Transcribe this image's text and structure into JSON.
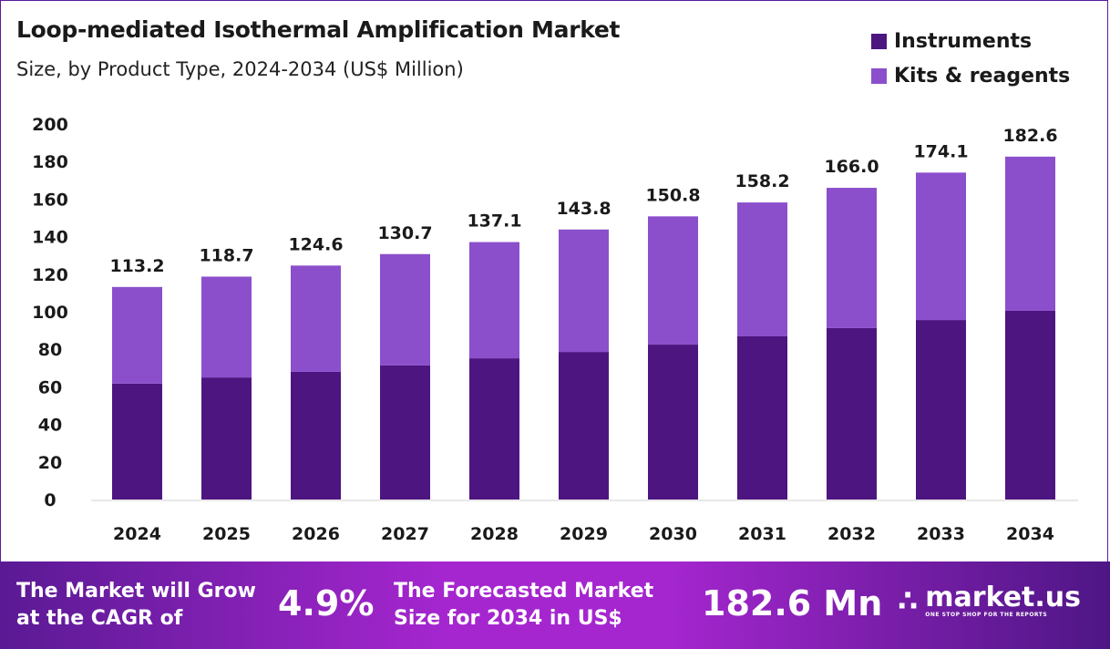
{
  "chart_data": {
    "type": "bar",
    "stacked": true,
    "title": "Loop-mediated Isothermal Amplification Market",
    "subtitle": "Size, by Product Type, 2024-2034 (US$ Million)",
    "categories": [
      "2024",
      "2025",
      "2026",
      "2027",
      "2028",
      "2029",
      "2030",
      "2031",
      "2032",
      "2033",
      "2034"
    ],
    "series": [
      {
        "name": "Instruments",
        "color": "#4d1580",
        "values": [
          61.7,
          65.0,
          68.0,
          71.4,
          75.2,
          78.6,
          82.5,
          86.9,
          91.3,
          95.6,
          100.5
        ]
      },
      {
        "name": "Kits & reagents",
        "color": "#8b4fcc",
        "values": [
          51.5,
          53.7,
          56.6,
          59.3,
          61.9,
          65.2,
          68.3,
          71.3,
          74.7,
          78.5,
          82.1
        ]
      }
    ],
    "totals": [
      "113.2",
      "118.7",
      "124.6",
      "130.7",
      "137.1",
      "143.8",
      "150.8",
      "158.2",
      "166.0",
      "174.1",
      "182.6"
    ],
    "ylim": [
      0,
      200
    ],
    "yticks": [
      "0",
      "20",
      "40",
      "60",
      "80",
      "100",
      "120",
      "140",
      "160",
      "180",
      "200"
    ],
    "grid": false,
    "legend_position": "top-right"
  },
  "footer": {
    "cagr_label_1": "The Market will Grow",
    "cagr_label_2": "at the CAGR of",
    "cagr_value": "4.9%",
    "forecast_label_1": "The Forecasted Market",
    "forecast_label_2": "Size for 2034 in US$",
    "forecast_value": "182.6 Mn",
    "logo_name": "market.us",
    "logo_tagline": "ONE STOP SHOP FOR THE REPORTS"
  }
}
